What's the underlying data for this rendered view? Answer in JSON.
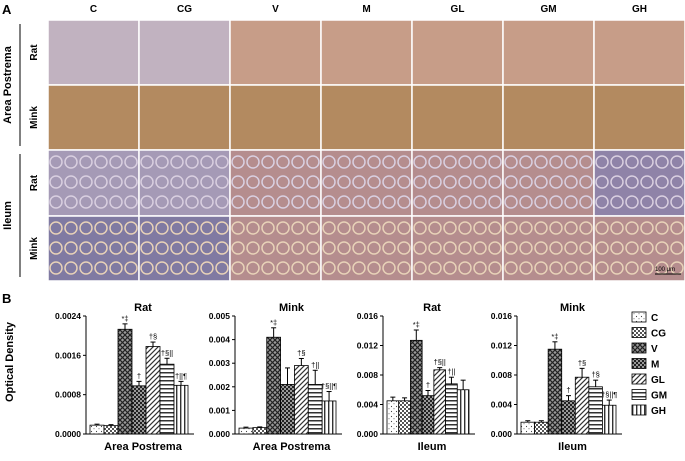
{
  "panel_a": {
    "label": "A",
    "columns": [
      "C",
      "CG",
      "V",
      "M",
      "GL",
      "GM",
      "GH"
    ],
    "groups": [
      {
        "name": "Area Postrema",
        "rows": [
          "Rat",
          "Mink"
        ]
      },
      {
        "name": "Ileum",
        "rows": [
          "Rat",
          "Mink"
        ]
      }
    ],
    "scale_bar": "100 μm"
  },
  "panel_b": {
    "label": "B",
    "ylabel": "Optical Density",
    "legend": [
      "C",
      "CG",
      "V",
      "M",
      "GL",
      "GM",
      "GH"
    ]
  },
  "chart_data": [
    {
      "type": "bar",
      "title": "Rat",
      "xlabel": "Area Postrema",
      "ylabel": "Optical Density",
      "ylim": [
        0,
        0.0024
      ],
      "yticks": [
        "0.0000",
        "0.0008",
        "0.0016",
        "0.0024"
      ],
      "categories": [
        "C",
        "CG",
        "V",
        "M",
        "GL",
        "GM",
        "GH"
      ],
      "values": [
        0.00018,
        0.00017,
        0.00213,
        0.00098,
        0.00178,
        0.00142,
        0.00099
      ],
      "errors": [
        2e-05,
        2e-05,
        0.00011,
        9e-05,
        9e-05,
        0.00012,
        8e-05
      ],
      "annotations": [
        "",
        "",
        "*‡",
        "†",
        "†§",
        "†§||",
        "†||¶"
      ]
    },
    {
      "type": "bar",
      "title": "Mink",
      "xlabel": "Area Postrema",
      "ylabel": "",
      "ylim": [
        0,
        0.005
      ],
      "yticks": [
        "0.000",
        "0.001",
        "0.002",
        "0.003",
        "0.004",
        "0.005"
      ],
      "categories": [
        "C",
        "CG",
        "V",
        "M",
        "GL",
        "GM",
        "GH"
      ],
      "values": [
        0.00025,
        0.00027,
        0.0041,
        0.0021,
        0.0029,
        0.0021,
        0.0014
      ],
      "errors": [
        4e-05,
        3e-05,
        0.0004,
        0.0007,
        0.0003,
        0.0006,
        0.0004
      ],
      "annotations": [
        "",
        "",
        "*‡",
        "",
        "†§",
        "†||",
        "†§||¶"
      ]
    },
    {
      "type": "bar",
      "title": "Rat",
      "xlabel": "Ileum",
      "ylabel": "",
      "ylim": [
        0,
        0.016
      ],
      "yticks": [
        "0.000",
        "0.004",
        "0.008",
        "0.012",
        "0.016"
      ],
      "categories": [
        "C",
        "CG",
        "V",
        "M",
        "GL",
        "GM",
        "GH"
      ],
      "values": [
        0.0045,
        0.0045,
        0.0127,
        0.0052,
        0.0087,
        0.0068,
        0.006
      ],
      "errors": [
        0.0005,
        0.0004,
        0.0014,
        0.0007,
        0.0003,
        0.0009,
        0.0013
      ],
      "annotations": [
        "",
        "",
        "*‡",
        "†",
        "†§||",
        "†||",
        ""
      ]
    },
    {
      "type": "bar",
      "title": "Mink",
      "xlabel": "Ileum",
      "ylabel": "",
      "ylim": [
        0,
        0.016
      ],
      "yticks": [
        "0.000",
        "0.004",
        "0.008",
        "0.012",
        "0.016"
      ],
      "categories": [
        "C",
        "CG",
        "V",
        "M",
        "GL",
        "GM",
        "GH"
      ],
      "values": [
        0.0016,
        0.0016,
        0.0115,
        0.0045,
        0.0077,
        0.0064,
        0.0039
      ],
      "errors": [
        0.0002,
        0.0002,
        0.001,
        0.0007,
        0.0012,
        0.0009,
        0.0007
      ],
      "annotations": [
        "",
        "",
        "*‡",
        "†",
        "†§",
        "†§",
        "†§||¶"
      ]
    }
  ],
  "colors": {
    "ap_rat": "#c1b2c0",
    "ap_rat_v": "#c79d88",
    "ap_mink": "#b38a60",
    "il_rat": "#a59ab6",
    "il_rat_v": "#b58d8e",
    "il_mink": "#807aa2",
    "divider": "#ffffff",
    "bar_stroke": "#000000"
  }
}
